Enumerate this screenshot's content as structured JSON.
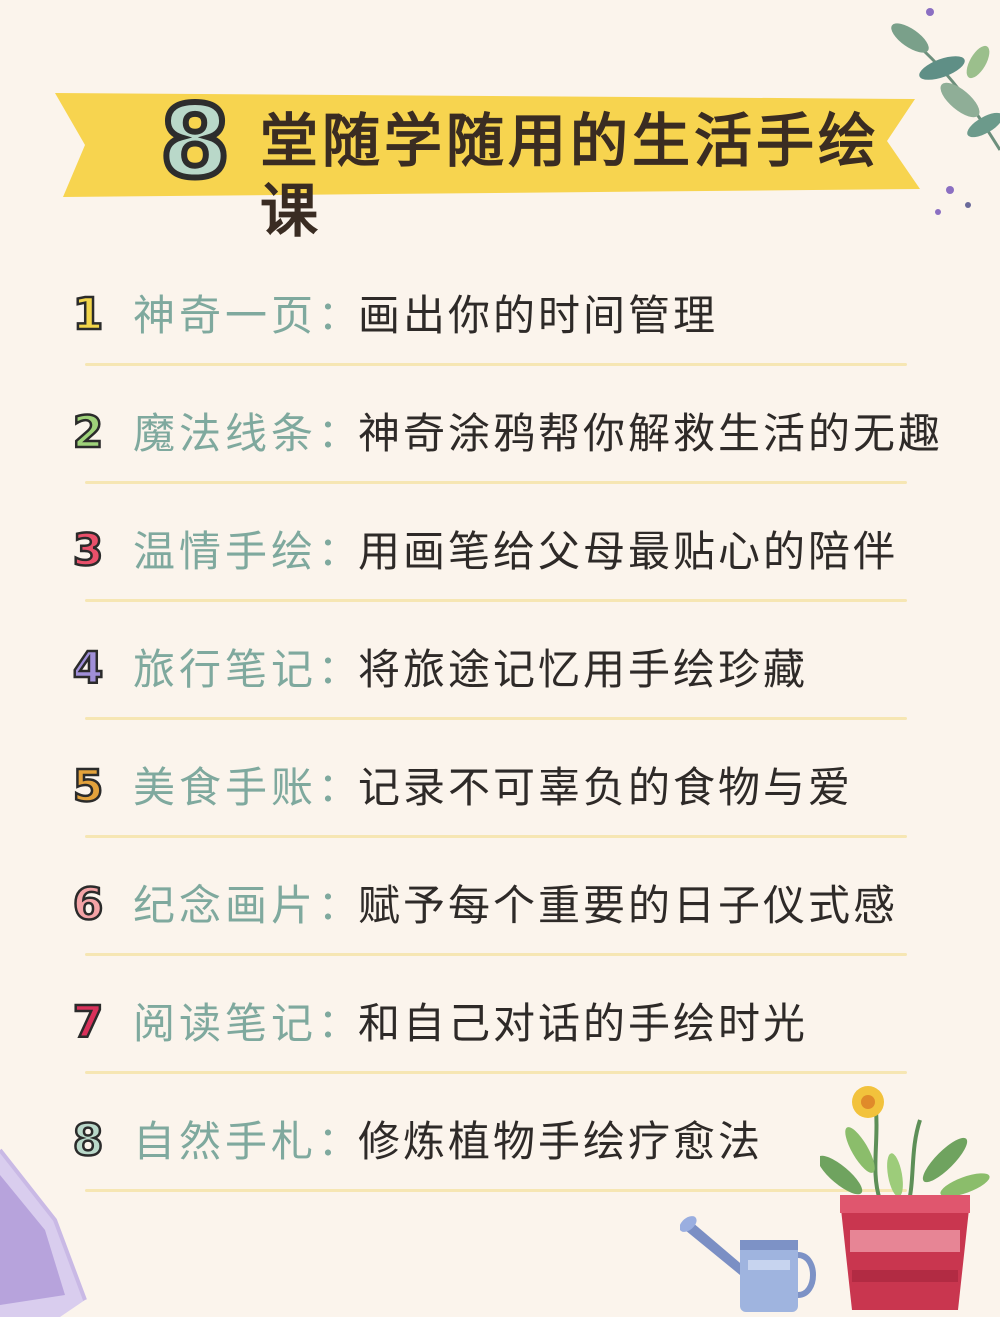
{
  "title": {
    "number": "8",
    "text": "堂随学随用的生活手绘课"
  },
  "colors": {
    "banner": "#f7d44f",
    "category": "#7fa99e",
    "rule": "#f6e6b3"
  },
  "items": [
    {
      "number": "1",
      "category": "神奇一页",
      "description": "画出你的时间管理",
      "color": "#f2d54a"
    },
    {
      "number": "2",
      "category": "魔法线条",
      "description": "神奇涂鸦帮你解救生活的无趣",
      "color": "#9fd27a"
    },
    {
      "number": "3",
      "category": "温情手绘",
      "description": "用画笔给父母最贴心的陪伴",
      "color": "#e9506a"
    },
    {
      "number": "4",
      "category": "旅行笔记",
      "description": "将旅途记忆用手绘珍藏",
      "color": "#a08fd8"
    },
    {
      "number": "5",
      "category": "美食手账",
      "description": "记录不可辜负的食物与爱",
      "color": "#e3a23c"
    },
    {
      "number": "6",
      "category": "纪念画片",
      "description": "赋予每个重要的日子仪式感",
      "color": "#f4a3a6"
    },
    {
      "number": "7",
      "category": "阅读笔记",
      "description": "和自己对话的手绘时光",
      "color": "#d9315a"
    },
    {
      "number": "8",
      "category": "自然手札",
      "description": "修炼植物手绘疗愈法",
      "color": "#b9d8c9"
    }
  ],
  "colon": "："
}
